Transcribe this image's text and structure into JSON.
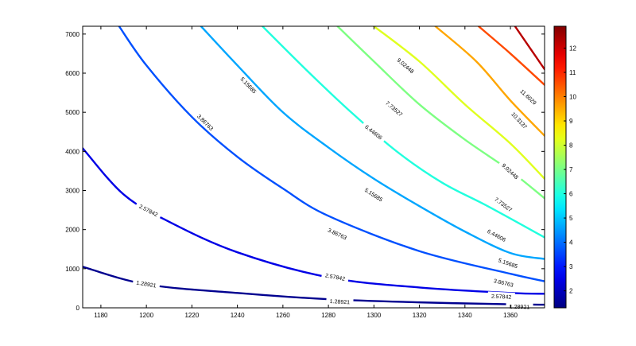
{
  "chart_data": {
    "type": "contour",
    "title": "",
    "xlabel": "",
    "ylabel": "",
    "xlim": [
      1172,
      1375
    ],
    "ylim": [
      0,
      7200
    ],
    "x_ticks": [
      "1180",
      "1200",
      "1220",
      "1240",
      "1260",
      "1280",
      "1300",
      "1320",
      "1340",
      "1360"
    ],
    "y_ticks": [
      "0",
      "1000",
      "2000",
      "3000",
      "4000",
      "5000",
      "6000",
      "7000"
    ],
    "colorbar": {
      "range": [
        1.3,
        12.9
      ],
      "ticks": [
        "2",
        "3",
        "4",
        "5",
        "6",
        "7",
        "8",
        "9",
        "10",
        "11",
        "12"
      ],
      "colormap": "jet"
    },
    "levels": [
      {
        "value": 1.28921,
        "label": "1.28921",
        "color": "#00008F"
      },
      {
        "value": 2.57842,
        "label": "2.57842",
        "color": "#0000E6"
      },
      {
        "value": 3.86763,
        "label": "3.86763",
        "color": "#0050FF"
      },
      {
        "value": 5.15685,
        "label": "5.15685",
        "color": "#00A6FF"
      },
      {
        "value": 6.44606,
        "label": "6.44606",
        "color": "#21FFDE"
      },
      {
        "value": 7.73527,
        "label": "7.73527",
        "color": "#7DFF82"
      },
      {
        "value": 9.02448,
        "label": "9.02448",
        "color": "#E0FF1F"
      },
      {
        "value": 10.3137,
        "label": "10.3137",
        "color": "#FFA600"
      },
      {
        "value": 11.6029,
        "label": "11.6029",
        "color": "#FF4A00"
      },
      {
        "value": 12.8921,
        "label": "12.8921",
        "color": "#B80000"
      }
    ],
    "contours": [
      {
        "level": 1.28921,
        "points": [
          [
            1172,
            1050
          ],
          [
            1200,
            600
          ],
          [
            1240,
            380
          ],
          [
            1280,
            220
          ],
          [
            1320,
            140
          ],
          [
            1360,
            90
          ],
          [
            1375,
            80
          ]
        ],
        "labels": [
          {
            "text": "1.28921",
            "x": 1200,
            "y": 620
          },
          {
            "text": "1.28921",
            "x": 1285,
            "y": 170
          },
          {
            "text": "1.28921",
            "x": 1364,
            "y": 40
          }
        ]
      },
      {
        "level": 2.57842,
        "points": [
          [
            1172,
            4080
          ],
          [
            1190,
            2900
          ],
          [
            1210,
            2200
          ],
          [
            1240,
            1420
          ],
          [
            1280,
            780
          ],
          [
            1320,
            520
          ],
          [
            1360,
            380
          ],
          [
            1375,
            360
          ]
        ],
        "labels": [
          {
            "text": "2.57842",
            "x": 1201,
            "y": 2500
          },
          {
            "text": "2.57842",
            "x": 1283,
            "y": 800
          },
          {
            "text": "2.57842",
            "x": 1356,
            "y": 300
          }
        ]
      },
      {
        "level": 3.86763,
        "points": [
          [
            1188,
            7200
          ],
          [
            1200,
            6200
          ],
          [
            1220,
            4880
          ],
          [
            1240,
            3860
          ],
          [
            1260,
            3050
          ],
          [
            1280,
            2350
          ],
          [
            1320,
            1450
          ],
          [
            1360,
            870
          ],
          [
            1375,
            680
          ]
        ],
        "labels": [
          {
            "text": "3.86763",
            "x": 1226,
            "y": 4750
          },
          {
            "text": "3.86763",
            "x": 1284,
            "y": 1900
          },
          {
            "text": "3.86763",
            "x": 1357,
            "y": 650
          }
        ]
      },
      {
        "level": 5.15685,
        "points": [
          [
            1224,
            7200
          ],
          [
            1240,
            6200
          ],
          [
            1260,
            5000
          ],
          [
            1280,
            4100
          ],
          [
            1300,
            3300
          ],
          [
            1320,
            2600
          ],
          [
            1340,
            1950
          ],
          [
            1360,
            1400
          ],
          [
            1375,
            1250
          ]
        ],
        "labels": [
          {
            "text": "5.15685",
            "x": 1245,
            "y": 5700
          },
          {
            "text": "5.15685",
            "x": 1300,
            "y": 2900
          },
          {
            "text": "5.15685",
            "x": 1359,
            "y": 1150
          }
        ]
      },
      {
        "level": 6.44606,
        "points": [
          [
            1251,
            7200
          ],
          [
            1270,
            6100
          ],
          [
            1290,
            5000
          ],
          [
            1310,
            4000
          ],
          [
            1330,
            3200
          ],
          [
            1350,
            2600
          ],
          [
            1375,
            1800
          ]
        ],
        "labels": [
          {
            "text": "6.44606",
            "x": 1300,
            "y": 4500
          },
          {
            "text": "6.44606",
            "x": 1354,
            "y": 1860
          }
        ]
      },
      {
        "level": 7.73527,
        "points": [
          [
            1284,
            7200
          ],
          [
            1300,
            6300
          ],
          [
            1320,
            5200
          ],
          [
            1340,
            4300
          ],
          [
            1360,
            3500
          ],
          [
            1375,
            2800
          ]
        ],
        "labels": [
          {
            "text": "7.73527",
            "x": 1309,
            "y": 5100
          },
          {
            "text": "7.73527",
            "x": 1357,
            "y": 2650
          }
        ]
      },
      {
        "level": 9.02448,
        "points": [
          [
            1300,
            7200
          ],
          [
            1320,
            6300
          ],
          [
            1340,
            5200
          ],
          [
            1360,
            4200
          ],
          [
            1375,
            3300
          ]
        ],
        "labels": [
          {
            "text": "9.02448",
            "x": 1314,
            "y": 6200
          },
          {
            "text": "9.02448",
            "x": 1360,
            "y": 3500
          }
        ]
      },
      {
        "level": 10.3137,
        "points": [
          [
            1327,
            7200
          ],
          [
            1345,
            6300
          ],
          [
            1360,
            5300
          ],
          [
            1375,
            4400
          ]
        ],
        "labels": [
          {
            "text": "10.3137",
            "x": 1364,
            "y": 4800
          }
        ]
      },
      {
        "level": 11.6029,
        "points": [
          [
            1346,
            7200
          ],
          [
            1360,
            6500
          ],
          [
            1375,
            5700
          ]
        ],
        "labels": [
          {
            "text": "11.6029",
            "x": 1368,
            "y": 5400
          }
        ]
      },
      {
        "level": 12.8921,
        "points": [
          [
            1362,
            7200
          ],
          [
            1375,
            6100
          ]
        ],
        "labels": []
      }
    ],
    "grid": false
  }
}
